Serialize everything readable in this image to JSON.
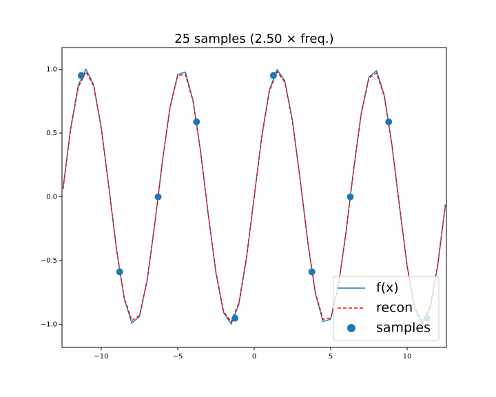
{
  "chart_data": {
    "type": "line",
    "title": "25 samples (2.50 × freq.)",
    "x": [
      -12.5,
      -12,
      -11.5,
      -11,
      -10.5,
      -10,
      -9.5,
      -9,
      -8.5,
      -8,
      -7.5,
      -7,
      -6.5,
      -6,
      -5.5,
      -5,
      -4.5,
      -4,
      -3.5,
      -3,
      -2.5,
      -2,
      -1.5,
      -1,
      -0.5,
      0,
      0.5,
      1,
      1.5,
      2,
      2.5,
      3,
      3.5,
      4,
      4.5,
      5,
      5.5,
      6,
      6.5,
      7,
      7.5,
      8,
      8.5,
      9,
      9.5,
      10,
      10.5,
      11,
      11.5,
      12,
      12.5
    ],
    "series": [
      {
        "name": "f(x)",
        "color": "#1f77b4",
        "dash": false,
        "values": [
          0.066,
          0.537,
          0.875,
          1.0,
          0.88,
          0.544,
          0.075,
          -0.412,
          -0.798,
          -0.989,
          -0.938,
          -0.657,
          -0.215,
          0.279,
          0.706,
          0.959,
          0.978,
          0.757,
          0.351,
          -0.141,
          -0.598,
          -0.909,
          -0.997,
          -0.841,
          -0.479,
          0,
          0.479,
          0.841,
          0.997,
          0.909,
          0.598,
          0.141,
          -0.351,
          -0.757,
          -0.978,
          -0.959,
          -0.706,
          -0.279,
          0.215,
          0.657,
          0.938,
          0.989,
          0.798,
          0.412,
          -0.075,
          -0.544,
          -0.88,
          -1.0,
          -0.875,
          -0.537,
          -0.066
        ]
      },
      {
        "name": "recon",
        "color": "#ff0000",
        "dash": true,
        "values": [
          0.06,
          0.53,
          0.86,
          0.98,
          0.87,
          0.54,
          0.07,
          -0.41,
          -0.79,
          -0.97,
          -0.93,
          -0.65,
          -0.21,
          0.28,
          0.7,
          0.95,
          0.96,
          0.75,
          0.35,
          -0.14,
          -0.59,
          -0.9,
          -0.98,
          -0.83,
          -0.47,
          0,
          0.47,
          0.83,
          0.98,
          0.9,
          0.59,
          0.14,
          -0.35,
          -0.75,
          -0.96,
          -0.95,
          -0.7,
          -0.28,
          0.21,
          0.65,
          0.93,
          0.97,
          0.79,
          0.41,
          -0.07,
          -0.54,
          -0.87,
          -0.98,
          -0.86,
          -0.53,
          -0.06
        ]
      }
    ],
    "samples": {
      "name": "samples",
      "color": "#1f77b4",
      "x": [
        -11.31,
        -8.796,
        -6.283,
        -3.77,
        -1.257,
        1.257,
        3.77,
        6.283,
        8.796,
        11.31
      ],
      "values": [
        0.951,
        -0.588,
        0,
        0.588,
        -0.951,
        0.951,
        -0.588,
        0,
        0.588,
        -0.951
      ]
    },
    "xlim": [
      -12.566,
      12.566
    ],
    "ylim": [
      -1.18,
      1.17
    ],
    "xticks": [
      {
        "value": -10,
        "label": "−10"
      },
      {
        "value": -5,
        "label": "−5"
      },
      0,
      5,
      10
    ],
    "yticks": [
      {
        "value": -1,
        "label": "−1.0"
      },
      {
        "value": -0.5,
        "label": "−0.5"
      },
      {
        "value": 0,
        "label": "0.0"
      },
      0.5,
      {
        "value": 1,
        "label": "1.0"
      }
    ],
    "legend": "lower right",
    "grid": false
  }
}
